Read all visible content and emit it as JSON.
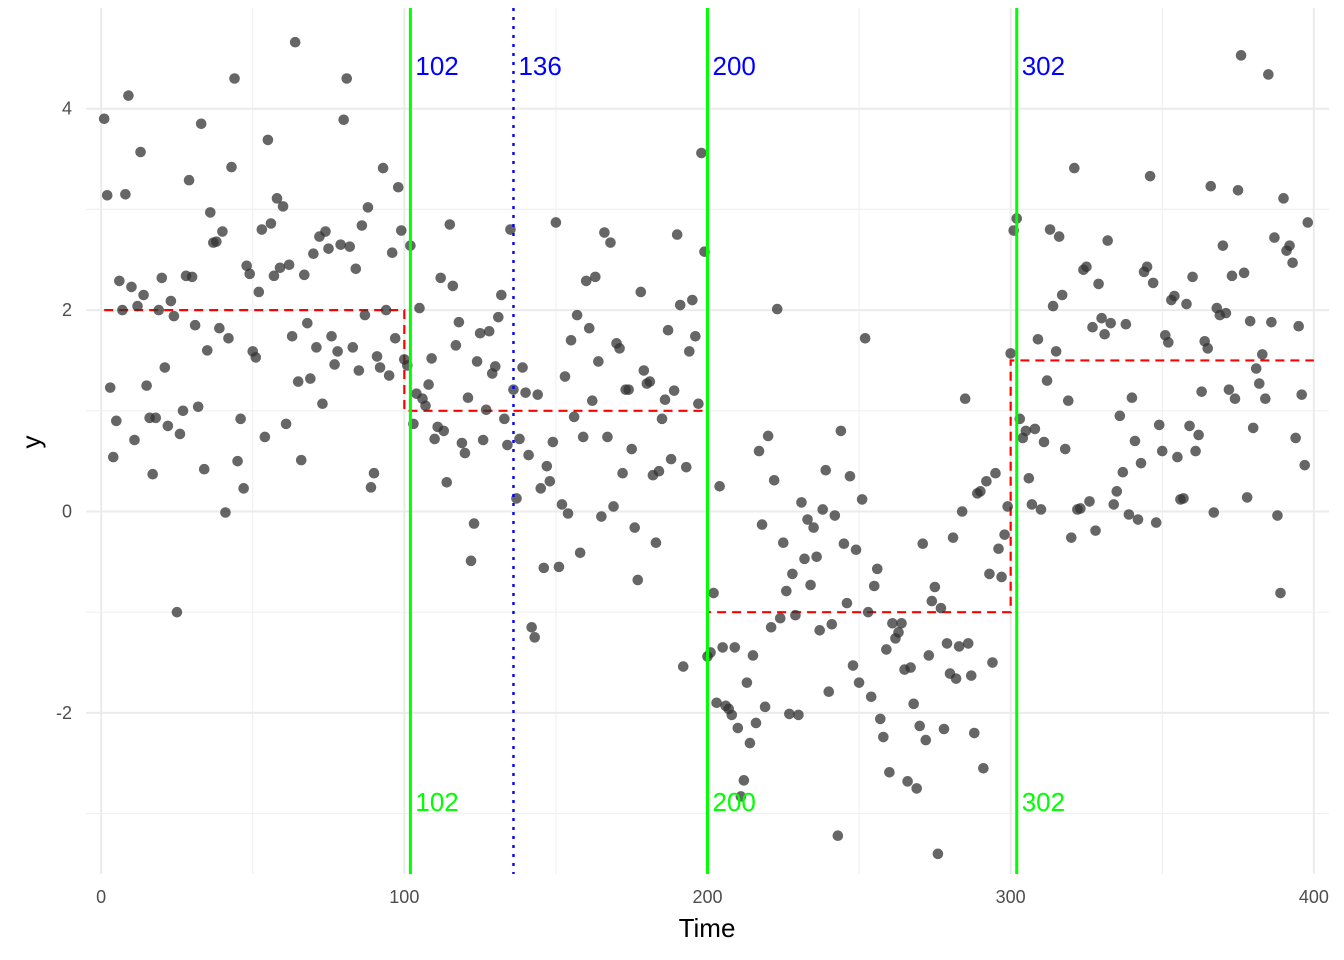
{
  "chart_data": {
    "type": "scatter",
    "title": "",
    "xlabel": "Time",
    "ylabel": "y",
    "xlim": [
      -5,
      405
    ],
    "ylim": [
      -3.6,
      5.0
    ],
    "x_ticks": [
      0,
      100,
      200,
      300,
      400
    ],
    "x_tick_labels": [
      "0",
      "100",
      "200",
      "300",
      "400"
    ],
    "y_ticks": [
      -2,
      0,
      2,
      4
    ],
    "y_tick_labels": [
      "-2",
      "0",
      "2",
      "4"
    ],
    "grid": true,
    "colors": {
      "points": "#333333",
      "true_mean": "#ff0000",
      "detected": "#00ff00",
      "extra": "#0000ff"
    },
    "true_mean_segments": [
      {
        "x_start": 1,
        "x_end": 100,
        "y": 2
      },
      {
        "x_start": 100,
        "x_end": 200,
        "y": 1
      },
      {
        "x_start": 200,
        "x_end": 300,
        "y": -1
      },
      {
        "x_start": 300,
        "x_end": 400,
        "y": 1.5
      }
    ],
    "changepoints_solid": [
      {
        "x": 102,
        "label_top": "102",
        "label_bottom": "102"
      },
      {
        "x": 200,
        "label_top": "200",
        "label_bottom": "200"
      },
      {
        "x": 302,
        "label_top": "302",
        "label_bottom": "302"
      }
    ],
    "changepoints_dotted": [
      {
        "x": 136,
        "label_top": "136"
      }
    ],
    "points": [
      [
        1,
        3.9
      ],
      [
        2,
        3.14
      ],
      [
        3,
        1.23
      ],
      [
        4,
        0.54
      ],
      [
        5,
        0.9
      ],
      [
        6,
        2.29
      ],
      [
        7,
        2.0
      ],
      [
        8,
        3.15
      ],
      [
        9,
        4.13
      ],
      [
        10,
        2.23
      ],
      [
        11,
        0.71
      ],
      [
        12,
        2.04
      ],
      [
        13,
        3.57
      ],
      [
        14,
        2.15
      ],
      [
        15,
        1.25
      ],
      [
        16,
        0.93
      ],
      [
        17,
        0.37
      ],
      [
        18,
        0.93
      ],
      [
        19,
        2.0
      ],
      [
        20,
        2.32
      ],
      [
        21,
        1.43
      ],
      [
        22,
        0.85
      ],
      [
        23,
        2.09
      ],
      [
        24,
        1.94
      ],
      [
        25,
        -1.0
      ],
      [
        26,
        0.77
      ],
      [
        27,
        1.0
      ],
      [
        28,
        2.34
      ],
      [
        29,
        3.29
      ],
      [
        30,
        2.33
      ],
      [
        31,
        1.85
      ],
      [
        32,
        1.04
      ],
      [
        33,
        3.85
      ],
      [
        34,
        0.42
      ],
      [
        35,
        1.6
      ],
      [
        36,
        2.97
      ],
      [
        37,
        2.67
      ],
      [
        38,
        2.68
      ],
      [
        39,
        1.82
      ],
      [
        40,
        2.78
      ],
      [
        41,
        -0.01
      ],
      [
        42,
        1.72
      ],
      [
        43,
        3.42
      ],
      [
        44,
        4.3
      ],
      [
        45,
        0.5
      ],
      [
        46,
        0.92
      ],
      [
        47,
        0.23
      ],
      [
        48,
        2.44
      ],
      [
        49,
        2.36
      ],
      [
        50,
        1.59
      ],
      [
        51,
        1.53
      ],
      [
        52,
        2.18
      ],
      [
        53,
        2.8
      ],
      [
        54,
        0.74
      ],
      [
        55,
        3.69
      ],
      [
        56,
        2.86
      ],
      [
        57,
        2.34
      ],
      [
        58,
        3.11
      ],
      [
        59,
        2.42
      ],
      [
        60,
        3.03
      ],
      [
        61,
        0.87
      ],
      [
        62,
        2.45
      ],
      [
        63,
        1.74
      ],
      [
        64,
        4.66
      ],
      [
        65,
        1.29
      ],
      [
        66,
        0.51
      ],
      [
        67,
        2.35
      ],
      [
        68,
        1.87
      ],
      [
        69,
        1.32
      ],
      [
        70,
        2.56
      ],
      [
        71,
        1.63
      ],
      [
        72,
        2.73
      ],
      [
        73,
        1.07
      ],
      [
        74,
        2.78
      ],
      [
        75,
        2.61
      ],
      [
        76,
        1.74
      ],
      [
        77,
        1.46
      ],
      [
        78,
        1.59
      ],
      [
        79,
        2.65
      ],
      [
        80,
        3.89
      ],
      [
        81,
        4.3
      ],
      [
        82,
        2.63
      ],
      [
        83,
        1.63
      ],
      [
        84,
        2.41
      ],
      [
        85,
        1.4
      ],
      [
        86,
        2.84
      ],
      [
        87,
        1.95
      ],
      [
        88,
        3.02
      ],
      [
        89,
        0.24
      ],
      [
        90,
        0.38
      ],
      [
        91,
        1.54
      ],
      [
        92,
        1.43
      ],
      [
        93,
        3.41
      ],
      [
        94,
        2.0
      ],
      [
        95,
        1.35
      ],
      [
        96,
        2.57
      ],
      [
        97,
        1.72
      ],
      [
        98,
        3.22
      ],
      [
        99,
        2.79
      ],
      [
        100,
        1.51
      ],
      [
        101,
        1.45
      ],
      [
        102,
        2.64
      ],
      [
        103,
        0.87
      ],
      [
        104,
        1.17
      ],
      [
        105,
        2.02
      ],
      [
        106,
        1.12
      ],
      [
        107,
        1.05
      ],
      [
        108,
        1.26
      ],
      [
        109,
        1.52
      ],
      [
        110,
        0.72
      ],
      [
        111,
        0.84
      ],
      [
        112,
        2.32
      ],
      [
        113,
        0.8
      ],
      [
        114,
        0.29
      ],
      [
        115,
        2.85
      ],
      [
        116,
        2.24
      ],
      [
        117,
        1.65
      ],
      [
        118,
        1.88
      ],
      [
        119,
        0.68
      ],
      [
        120,
        0.58
      ],
      [
        121,
        1.13
      ],
      [
        122,
        -0.49
      ],
      [
        123,
        -0.12
      ],
      [
        124,
        1.49
      ],
      [
        125,
        1.77
      ],
      [
        126,
        0.71
      ],
      [
        127,
        1.01
      ],
      [
        128,
        1.79
      ],
      [
        129,
        1.37
      ],
      [
        130,
        1.44
      ],
      [
        131,
        1.93
      ],
      [
        132,
        2.15
      ],
      [
        133,
        0.92
      ],
      [
        134,
        0.66
      ],
      [
        135,
        2.8
      ],
      [
        136,
        1.21
      ],
      [
        137,
        0.13
      ],
      [
        138,
        0.72
      ],
      [
        139,
        1.43
      ],
      [
        140,
        1.18
      ],
      [
        141,
        0.56
      ],
      [
        142,
        -1.15
      ],
      [
        143,
        -1.25
      ],
      [
        144,
        1.16
      ],
      [
        145,
        0.23
      ],
      [
        146,
        -0.56
      ],
      [
        147,
        0.45
      ],
      [
        148,
        0.3
      ],
      [
        149,
        0.69
      ],
      [
        150,
        2.87
      ],
      [
        151,
        -0.55
      ],
      [
        152,
        0.07
      ],
      [
        153,
        1.34
      ],
      [
        154,
        -0.02
      ],
      [
        155,
        1.7
      ],
      [
        156,
        0.94
      ],
      [
        157,
        1.95
      ],
      [
        158,
        -0.41
      ],
      [
        159,
        0.74
      ],
      [
        160,
        2.29
      ],
      [
        161,
        1.82
      ],
      [
        162,
        1.1
      ],
      [
        163,
        2.33
      ],
      [
        164,
        1.49
      ],
      [
        165,
        -0.05
      ],
      [
        166,
        2.77
      ],
      [
        167,
        0.74
      ],
      [
        168,
        2.67
      ],
      [
        169,
        0.05
      ],
      [
        170,
        1.67
      ],
      [
        171,
        1.62
      ],
      [
        172,
        0.38
      ],
      [
        173,
        1.21
      ],
      [
        174,
        1.21
      ],
      [
        175,
        0.62
      ],
      [
        176,
        -0.16
      ],
      [
        177,
        -0.68
      ],
      [
        178,
        2.18
      ],
      [
        179,
        1.4
      ],
      [
        180,
        1.27
      ],
      [
        181,
        1.29
      ],
      [
        182,
        0.36
      ],
      [
        183,
        -0.31
      ],
      [
        184,
        0.4
      ],
      [
        185,
        0.92
      ],
      [
        186,
        1.11
      ],
      [
        187,
        1.8
      ],
      [
        188,
        0.52
      ],
      [
        189,
        1.2
      ],
      [
        190,
        2.75
      ],
      [
        191,
        2.05
      ],
      [
        192,
        -1.54
      ],
      [
        193,
        0.44
      ],
      [
        194,
        1.59
      ],
      [
        195,
        2.1
      ],
      [
        196,
        1.74
      ],
      [
        197,
        1.07
      ],
      [
        198,
        3.56
      ],
      [
        199,
        2.58
      ],
      [
        200,
        -1.44
      ],
      [
        201,
        -1.4
      ],
      [
        202,
        -0.81
      ],
      [
        203,
        -1.9
      ],
      [
        204,
        0.25
      ],
      [
        205,
        -1.35
      ],
      [
        206,
        -1.93
      ],
      [
        207,
        -1.96
      ],
      [
        208,
        -2.02
      ],
      [
        209,
        -1.35
      ],
      [
        210,
        -2.15
      ],
      [
        211,
        -2.83
      ],
      [
        212,
        -2.67
      ],
      [
        213,
        -1.7
      ],
      [
        214,
        -2.3
      ],
      [
        215,
        -1.43
      ],
      [
        216,
        -2.1
      ],
      [
        217,
        0.6
      ],
      [
        218,
        -0.13
      ],
      [
        219,
        -1.94
      ],
      [
        220,
        0.75
      ],
      [
        221,
        -1.15
      ],
      [
        222,
        0.31
      ],
      [
        223,
        2.01
      ],
      [
        224,
        -1.06
      ],
      [
        225,
        -0.31
      ],
      [
        226,
        -0.79
      ],
      [
        227,
        -2.01
      ],
      [
        228,
        -0.62
      ],
      [
        229,
        -1.03
      ],
      [
        230,
        -2.02
      ],
      [
        231,
        0.09
      ],
      [
        232,
        -0.47
      ],
      [
        233,
        -0.08
      ],
      [
        234,
        -0.73
      ],
      [
        235,
        -0.16
      ],
      [
        236,
        -0.45
      ],
      [
        237,
        -1.18
      ],
      [
        238,
        0.02
      ],
      [
        239,
        0.41
      ],
      [
        240,
        -1.79
      ],
      [
        241,
        -1.12
      ],
      [
        242,
        -0.04
      ],
      [
        243,
        -3.22
      ],
      [
        244,
        0.8
      ],
      [
        245,
        -0.32
      ],
      [
        246,
        -0.91
      ],
      [
        247,
        0.35
      ],
      [
        248,
        -1.53
      ],
      [
        249,
        -0.38
      ],
      [
        250,
        -1.7
      ],
      [
        251,
        0.12
      ],
      [
        252,
        1.72
      ],
      [
        253,
        -1.0
      ],
      [
        254,
        -1.84
      ],
      [
        255,
        -0.74
      ],
      [
        256,
        -0.57
      ],
      [
        257,
        -2.06
      ],
      [
        258,
        -2.24
      ],
      [
        259,
        -1.37
      ],
      [
        260,
        -2.59
      ],
      [
        261,
        -1.11
      ],
      [
        262,
        -1.26
      ],
      [
        263,
        -1.2
      ],
      [
        264,
        -1.11
      ],
      [
        265,
        -1.57
      ],
      [
        266,
        -2.68
      ],
      [
        267,
        -1.55
      ],
      [
        268,
        -1.91
      ],
      [
        269,
        -2.75
      ],
      [
        270,
        -2.13
      ],
      [
        271,
        -0.32
      ],
      [
        272,
        -2.27
      ],
      [
        273,
        -1.43
      ],
      [
        274,
        -0.89
      ],
      [
        275,
        -0.75
      ],
      [
        276,
        -3.4
      ],
      [
        277,
        -0.96
      ],
      [
        278,
        -2.16
      ],
      [
        279,
        -1.31
      ],
      [
        280,
        -1.61
      ],
      [
        281,
        -0.26
      ],
      [
        282,
        -1.66
      ],
      [
        283,
        -1.34
      ],
      [
        284,
        0.0
      ],
      [
        285,
        1.12
      ],
      [
        286,
        -1.31
      ],
      [
        287,
        -1.63
      ],
      [
        288,
        -2.2
      ],
      [
        289,
        0.18
      ],
      [
        290,
        0.2
      ],
      [
        291,
        -2.55
      ],
      [
        292,
        0.3
      ],
      [
        293,
        -0.62
      ],
      [
        294,
        -1.5
      ],
      [
        295,
        0.38
      ],
      [
        296,
        -0.37
      ],
      [
        297,
        -0.65
      ],
      [
        298,
        -0.23
      ],
      [
        299,
        0.05
      ],
      [
        300,
        1.57
      ],
      [
        301,
        2.79
      ],
      [
        302,
        2.91
      ],
      [
        303,
        0.92
      ],
      [
        304,
        0.73
      ],
      [
        305,
        0.8
      ],
      [
        306,
        0.33
      ],
      [
        307,
        0.07
      ],
      [
        308,
        0.82
      ],
      [
        309,
        1.71
      ],
      [
        310,
        0.02
      ],
      [
        311,
        0.69
      ],
      [
        312,
        1.3
      ],
      [
        313,
        2.8
      ],
      [
        314,
        2.04
      ],
      [
        315,
        1.59
      ],
      [
        316,
        2.73
      ],
      [
        317,
        2.15
      ],
      [
        318,
        0.62
      ],
      [
        319,
        1.1
      ],
      [
        320,
        -0.26
      ],
      [
        321,
        3.41
      ],
      [
        322,
        0.02
      ],
      [
        323,
        0.03
      ],
      [
        324,
        2.4
      ],
      [
        325,
        2.43
      ],
      [
        326,
        0.1
      ],
      [
        327,
        1.83
      ],
      [
        328,
        -0.19
      ],
      [
        329,
        2.26
      ],
      [
        330,
        1.92
      ],
      [
        331,
        1.76
      ],
      [
        332,
        2.69
      ],
      [
        333,
        1.87
      ],
      [
        334,
        0.07
      ],
      [
        335,
        0.2
      ],
      [
        336,
        0.95
      ],
      [
        337,
        0.39
      ],
      [
        338,
        1.86
      ],
      [
        339,
        -0.03
      ],
      [
        340,
        1.13
      ],
      [
        341,
        0.7
      ],
      [
        342,
        -0.08
      ],
      [
        343,
        0.48
      ],
      [
        344,
        2.38
      ],
      [
        345,
        2.43
      ],
      [
        346,
        3.33
      ],
      [
        347,
        2.27
      ],
      [
        348,
        -0.11
      ],
      [
        349,
        0.86
      ],
      [
        350,
        0.6
      ],
      [
        351,
        1.75
      ],
      [
        352,
        1.68
      ],
      [
        353,
        2.1
      ],
      [
        354,
        2.14
      ],
      [
        355,
        0.54
      ],
      [
        356,
        0.12
      ],
      [
        357,
        0.13
      ],
      [
        358,
        2.06
      ],
      [
        359,
        0.85
      ],
      [
        360,
        2.33
      ],
      [
        361,
        0.6
      ],
      [
        362,
        0.76
      ],
      [
        363,
        1.19
      ],
      [
        364,
        1.69
      ],
      [
        365,
        1.62
      ],
      [
        366,
        3.23
      ],
      [
        367,
        -0.01
      ],
      [
        368,
        2.02
      ],
      [
        369,
        1.95
      ],
      [
        370,
        2.64
      ],
      [
        371,
        1.97
      ],
      [
        372,
        1.21
      ],
      [
        373,
        2.34
      ],
      [
        374,
        1.12
      ],
      [
        375,
        3.19
      ],
      [
        376,
        4.53
      ],
      [
        377,
        2.37
      ],
      [
        378,
        0.14
      ],
      [
        379,
        1.89
      ],
      [
        380,
        0.83
      ],
      [
        381,
        1.42
      ],
      [
        382,
        1.27
      ],
      [
        383,
        1.56
      ],
      [
        384,
        1.12
      ],
      [
        385,
        4.34
      ],
      [
        386,
        1.88
      ],
      [
        387,
        2.72
      ],
      [
        388,
        -0.04
      ],
      [
        389,
        -0.81
      ],
      [
        390,
        3.11
      ],
      [
        391,
        2.59
      ],
      [
        392,
        2.64
      ],
      [
        393,
        2.47
      ],
      [
        394,
        0.73
      ],
      [
        395,
        1.84
      ],
      [
        396,
        1.16
      ],
      [
        397,
        0.46
      ],
      [
        398,
        2.87
      ]
    ]
  }
}
